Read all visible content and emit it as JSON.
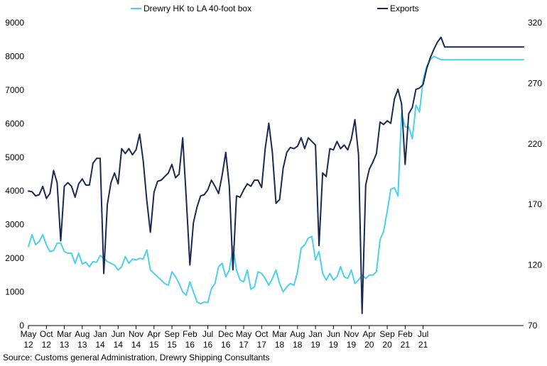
{
  "chart_data": {
    "type": "line",
    "title": "",
    "xlabel": "",
    "ylabel": "",
    "ylim": [
      0,
      9000
    ],
    "y2lim": [
      70,
      320
    ],
    "yticks": [
      0,
      1000,
      2000,
      3000,
      4000,
      5000,
      6000,
      7000,
      8000,
      9000
    ],
    "y2ticks": [
      70,
      120,
      170,
      220,
      270,
      320
    ],
    "grid": false,
    "legend_position": "top",
    "x_ticks": [
      {
        "month": "May",
        "year": "12"
      },
      {
        "month": "Oct",
        "year": "12"
      },
      {
        "month": "Mar",
        "year": "13"
      },
      {
        "month": "Aug",
        "year": "13"
      },
      {
        "month": "Jan",
        "year": "14"
      },
      {
        "month": "Jun",
        "year": "14"
      },
      {
        "month": "Nov",
        "year": "14"
      },
      {
        "month": "Apr",
        "year": "15"
      },
      {
        "month": "Sep",
        "year": "15"
      },
      {
        "month": "Feb",
        "year": "16"
      },
      {
        "month": "Jul",
        "year": "16"
      },
      {
        "month": "Dec",
        "year": "16"
      },
      {
        "month": "May",
        "year": "17"
      },
      {
        "month": "Oct",
        "year": "17"
      },
      {
        "month": "Mar",
        "year": "18"
      },
      {
        "month": "Aug",
        "year": "18"
      },
      {
        "month": "Jan",
        "year": "19"
      },
      {
        "month": "Jun",
        "year": "19"
      },
      {
        "month": "Nov",
        "year": "19"
      },
      {
        "month": "Apr",
        "year": "20"
      },
      {
        "month": "Sep",
        "year": "20"
      },
      {
        "month": "Feb",
        "year": "21"
      },
      {
        "month": "Jul",
        "year": "21"
      }
    ],
    "series": [
      {
        "name": "Drewry HK to LA 40-foot box",
        "axis": "left",
        "color": "#4dd0e8",
        "x": [
          0,
          1,
          2,
          3,
          4,
          5,
          6,
          7,
          8,
          9,
          10,
          11,
          12,
          13,
          14,
          15,
          16,
          17,
          18,
          19,
          20,
          21,
          22,
          23,
          24,
          25,
          26,
          27,
          28,
          29,
          30,
          31,
          32,
          33,
          34,
          35,
          36,
          37,
          38,
          39,
          40,
          41,
          42,
          43,
          44,
          45,
          46,
          47,
          48,
          49,
          50,
          51,
          52,
          53,
          54,
          55,
          56,
          57,
          58,
          59,
          60,
          61,
          62,
          63,
          64,
          65,
          66,
          67,
          68,
          69,
          70,
          71,
          72,
          73,
          74,
          75,
          76,
          77,
          78,
          79,
          80,
          81,
          82,
          83,
          84,
          85,
          86,
          87,
          88,
          89,
          90,
          91,
          92,
          93,
          94,
          95,
          96,
          97,
          98,
          99,
          100,
          101,
          102,
          103,
          104,
          105,
          106,
          107,
          108,
          109,
          110,
          111,
          112,
          113,
          114,
          115,
          116,
          117,
          118,
          119,
          120,
          121,
          122,
          123,
          124,
          125,
          126,
          127,
          128,
          129,
          130,
          131,
          132,
          133,
          134,
          135,
          136,
          137,
          138
        ],
        "values": [
          2350,
          2700,
          2400,
          2500,
          2700,
          2400,
          2200,
          2230,
          2450,
          2450,
          2200,
          2150,
          2150,
          1850,
          2150,
          1830,
          1880,
          1750,
          1900,
          1880,
          2080,
          2000,
          1900,
          1850,
          1800,
          1650,
          1750,
          2050,
          1850,
          1980,
          1950,
          2000,
          1980,
          2250,
          1650,
          1550,
          1450,
          1350,
          1250,
          1200,
          1600,
          1450,
          1250,
          1000,
          900,
          1300,
          1000,
          700,
          650,
          700,
          680,
          1100,
          1250,
          1750,
          1850,
          1450,
          1650,
          2350,
          1650,
          1350,
          1300,
          1650,
          1080,
          1150,
          1600,
          1550,
          1400,
          1200,
          1400,
          1650,
          1250,
          1000,
          1150,
          1250,
          1200,
          1600,
          2300,
          2400,
          2600,
          2650,
          1950,
          2200,
          1550,
          1350,
          1550,
          1350,
          1450,
          1750,
          1450,
          1400,
          1650,
          1250,
          1350,
          1500,
          1400,
          1500,
          1500,
          1600,
          2550,
          2800,
          3400,
          4050,
          4100,
          3850,
          6300,
          5900,
          5900,
          5550,
          6550,
          6350,
          7300,
          7700,
          7900,
          8000,
          7950,
          7900,
          7900,
          7900,
          7900,
          7900,
          7900,
          7900,
          7900,
          7900,
          7900,
          7900,
          7900,
          7900,
          7900,
          7900,
          7900,
          7900,
          7900,
          7900,
          7900,
          7900,
          7900,
          7900,
          7900
        ]
      },
      {
        "name": "Exports",
        "axis": "right",
        "color": "#1b2a4e",
        "x": [
          0,
          1,
          2,
          3,
          4,
          5,
          6,
          7,
          8,
          9,
          10,
          11,
          12,
          13,
          14,
          15,
          16,
          17,
          18,
          19,
          20,
          21,
          22,
          23,
          24,
          25,
          26,
          27,
          28,
          29,
          30,
          31,
          32,
          33,
          34,
          35,
          36,
          37,
          38,
          39,
          40,
          41,
          42,
          43,
          44,
          45,
          46,
          47,
          48,
          49,
          50,
          51,
          52,
          53,
          54,
          55,
          56,
          57,
          58,
          59,
          60,
          61,
          62,
          63,
          64,
          65,
          66,
          67,
          68,
          69,
          70,
          71,
          72,
          73,
          74,
          75,
          76,
          77,
          78,
          79,
          80,
          81,
          82,
          83,
          84,
          85,
          86,
          87,
          88,
          89,
          90,
          91,
          92,
          93,
          94,
          95,
          96,
          97,
          98,
          99,
          100,
          101,
          102,
          103,
          104,
          105,
          106,
          107,
          108,
          109,
          110,
          111,
          112,
          113,
          114,
          115,
          116,
          117,
          118,
          119,
          120,
          121,
          122,
          123,
          124,
          125,
          126,
          127,
          128,
          129,
          130,
          131,
          132,
          133,
          134,
          135,
          136,
          137,
          138
        ],
        "values": [
          181,
          180.5,
          177,
          178,
          185,
          175,
          179,
          198,
          188,
          140,
          185,
          188,
          185,
          176,
          187,
          191,
          186,
          186,
          204,
          208,
          208,
          113,
          170,
          188,
          196,
          187,
          216,
          212,
          216,
          211,
          215,
          228,
          206,
          173,
          147,
          180,
          189,
          190,
          193,
          196,
          203,
          192,
          195,
          225,
          175,
          120,
          155,
          168,
          177,
          178,
          182,
          190,
          185,
          179,
          194,
          213,
          185,
          116,
          177,
          176,
          182,
          187,
          185,
          190,
          190,
          184,
          216,
          237,
          213,
          171,
          174,
          200,
          213,
          217,
          216,
          218,
          225,
          216,
          225,
          222,
          219,
          136,
          196,
          193,
          216,
          215,
          222,
          216,
          219,
          215,
          224,
          240,
          211,
          80,
          186,
          199,
          205,
          212,
          238,
          236,
          239,
          237,
          257,
          265,
          253,
          203,
          245,
          250,
          265,
          266,
          269,
          282,
          291,
          298,
          304,
          308,
          300,
          300,
          300,
          300,
          300,
          300,
          300,
          300,
          300,
          300,
          300,
          300,
          300,
          300,
          300,
          300,
          300,
          300,
          300,
          300,
          300,
          300,
          300
        ]
      }
    ]
  },
  "legend": [
    {
      "label": "Drewry HK to LA 40-foot box",
      "color": "#4dd0e8"
    },
    {
      "label": "Exports",
      "color": "#1b2a4e"
    }
  ],
  "source": "Source: Customs general Administration, Drewry Shipping Consultants"
}
